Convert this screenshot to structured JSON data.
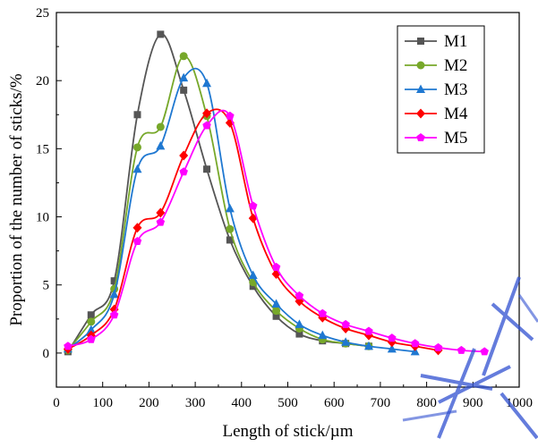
{
  "chart_data": {
    "type": "line",
    "title": "",
    "xlabel": "Length of stick/µm",
    "ylabel": "Proportion of the number of sticks/%",
    "xlim": [
      0,
      1000
    ],
    "ylim": [
      -2.5,
      25
    ],
    "xticks": [
      "0",
      "100",
      "200",
      "300",
      "400",
      "500",
      "600",
      "700",
      "800",
      "900",
      "1000"
    ],
    "yticks": [
      "0",
      "5",
      "10",
      "15",
      "20",
      "25"
    ],
    "legend_position": "top-right",
    "grid": false,
    "series": [
      {
        "name": "M1",
        "color": "#555555",
        "marker": "square",
        "x": [
          25,
          75,
          125,
          175,
          225,
          275,
          325,
          375,
          425,
          475,
          525,
          575,
          625,
          675
        ],
        "y": [
          0.1,
          2.8,
          5.3,
          17.5,
          23.4,
          19.3,
          13.5,
          8.3,
          4.9,
          2.7,
          1.4,
          0.9,
          0.7,
          0.5
        ]
      },
      {
        "name": "M2",
        "color": "#77a82a",
        "marker": "circle",
        "x": [
          25,
          75,
          125,
          175,
          225,
          275,
          325,
          375,
          425,
          475,
          525,
          575,
          625,
          675
        ],
        "y": [
          0.2,
          2.3,
          4.7,
          15.1,
          16.6,
          21.8,
          17.4,
          9.1,
          5.2,
          3.1,
          1.8,
          1.0,
          0.7,
          0.5
        ]
      },
      {
        "name": "M3",
        "color": "#1f78d1",
        "marker": "triangle",
        "x": [
          25,
          75,
          125,
          175,
          225,
          275,
          325,
          375,
          425,
          475,
          525,
          575,
          625,
          675,
          725,
          775
        ],
        "y": [
          0.3,
          1.7,
          4.3,
          13.5,
          15.2,
          20.2,
          19.8,
          10.6,
          5.7,
          3.6,
          2.1,
          1.3,
          0.8,
          0.5,
          0.3,
          0.1
        ]
      },
      {
        "name": "M4",
        "color": "#ff0000",
        "marker": "diamond",
        "x": [
          25,
          75,
          125,
          175,
          225,
          275,
          325,
          375,
          425,
          475,
          525,
          575,
          625,
          675,
          725,
          775,
          825
        ],
        "y": [
          0.3,
          1.3,
          3.2,
          9.2,
          10.3,
          14.5,
          17.6,
          16.9,
          9.9,
          5.8,
          3.8,
          2.6,
          1.8,
          1.3,
          0.8,
          0.5,
          0.2
        ]
      },
      {
        "name": "M5",
        "color": "#ff00ff",
        "marker": "pentagon",
        "x": [
          25,
          75,
          125,
          175,
          225,
          275,
          325,
          375,
          425,
          475,
          525,
          575,
          625,
          675,
          725,
          775,
          825,
          875,
          925
        ],
        "y": [
          0.5,
          1.0,
          2.8,
          8.2,
          9.6,
          13.3,
          16.7,
          17.4,
          10.8,
          6.3,
          4.2,
          2.9,
          2.1,
          1.6,
          1.1,
          0.7,
          0.4,
          0.2,
          0.1
        ]
      }
    ]
  }
}
